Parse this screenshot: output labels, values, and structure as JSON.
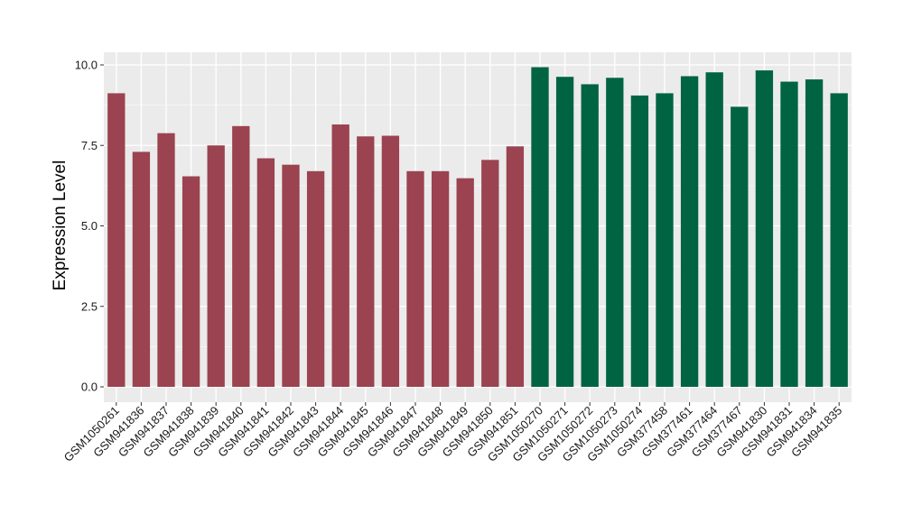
{
  "chart_data": {
    "type": "bar",
    "title": "",
    "xlabel": "",
    "ylabel": "Expression Level",
    "ylim": [
      0,
      10.4
    ],
    "yticks": [
      0.0,
      2.5,
      5.0,
      7.5,
      10.0
    ],
    "ytick_labels": [
      "0.0",
      "2.5",
      "5.0",
      "7.5",
      "10.0"
    ],
    "grid": true,
    "legend": "none",
    "panel_background": "#ebebeb",
    "grid_color": "#ffffff",
    "groups": [
      {
        "color": "#9b4350",
        "count": 17
      },
      {
        "color": "#006443",
        "count": 13
      }
    ],
    "categories": [
      "GSM1050261",
      "GSM941836",
      "GSM941837",
      "GSM941838",
      "GSM941839",
      "GSM941840",
      "GSM941841",
      "GSM941842",
      "GSM941843",
      "GSM941844",
      "GSM941845",
      "GSM941846",
      "GSM941847",
      "GSM941848",
      "GSM941849",
      "GSM941850",
      "GSM941851",
      "GSM1050270",
      "GSM1050271",
      "GSM1050272",
      "GSM1050273",
      "GSM1050274",
      "GSM377458",
      "GSM377461",
      "GSM377464",
      "GSM377467",
      "GSM941830",
      "GSM941831",
      "GSM941834",
      "GSM941835"
    ],
    "values": [
      9.12,
      7.3,
      7.88,
      6.54,
      7.5,
      8.1,
      7.1,
      6.9,
      6.7,
      8.15,
      7.78,
      7.8,
      6.7,
      6.7,
      6.48,
      7.05,
      7.47,
      9.93,
      9.63,
      9.4,
      9.6,
      9.05,
      9.12,
      9.65,
      9.77,
      8.7,
      9.83,
      9.48,
      9.55,
      9.12
    ]
  }
}
